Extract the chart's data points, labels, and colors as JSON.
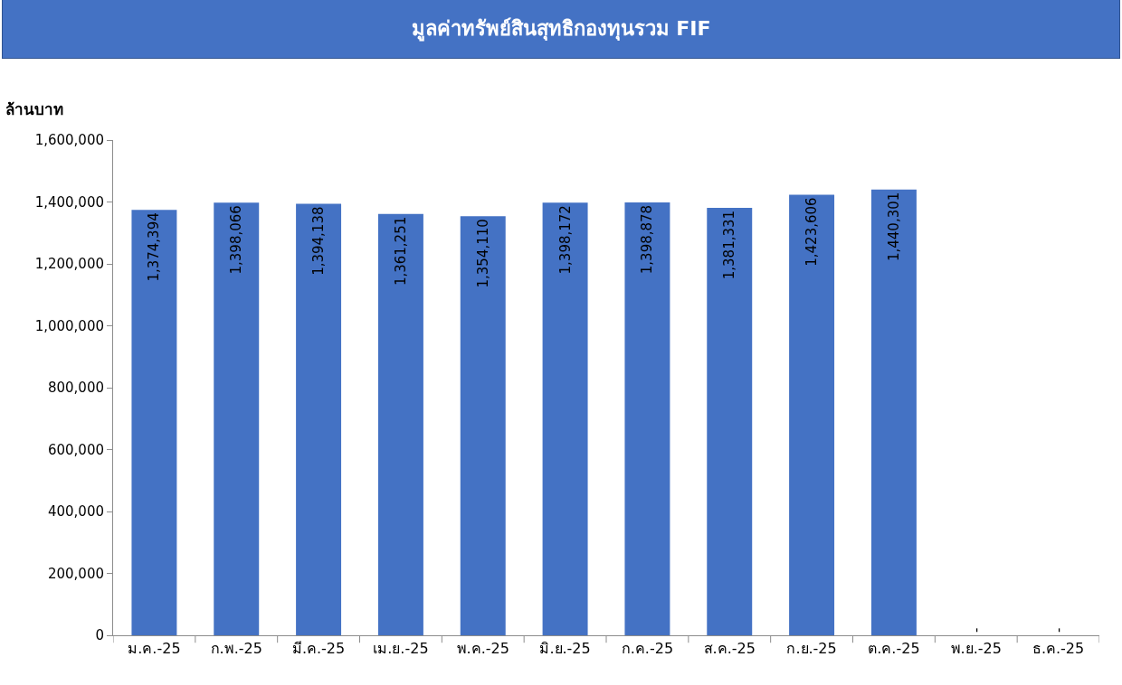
{
  "chart_data": {
    "type": "bar",
    "title": "มูลค่าทรัพย์สินสุทธิกองทุนรวม FIF",
    "ylabel": "ล้านบาท",
    "categories": [
      "ม.ค.-25",
      "ก.พ.-25",
      "มี.ค.-25",
      "เม.ย.-25",
      "พ.ค.-25",
      "มิ.ย.-25",
      "ก.ค.-25",
      "ส.ค.-25",
      "ก.ย.-25",
      "ต.ค.-25",
      "พ.ย.-25",
      "ธ.ค.-25"
    ],
    "values": [
      1374394,
      1398066,
      1394138,
      1361251,
      1354110,
      1398172,
      1398878,
      1381331,
      1423606,
      1440301,
      0,
      0
    ],
    "value_labels": [
      "1,374,394",
      "1,398,066",
      "1,394,138",
      "1,361,251",
      "1,354,110",
      "1,398,172",
      "1,398,878",
      "1,381,331",
      "1,423,606",
      "1,440,301",
      "-",
      "-"
    ],
    "color": "#4472c4",
    "ylim": [
      0,
      1600000
    ],
    "yticks": [
      {
        "value": 0,
        "label": "0"
      },
      {
        "value": 200000,
        "label": "200,000"
      },
      {
        "value": 400000,
        "label": "400,000"
      },
      {
        "value": 600000,
        "label": "600,000"
      },
      {
        "value": 800000,
        "label": "800,000"
      },
      {
        "value": 1000000,
        "label": "1,000,000"
      },
      {
        "value": 1200000,
        "label": "1,200,000"
      },
      {
        "value": 1400000,
        "label": "1,400,000"
      },
      {
        "value": 1600000,
        "label": "1,600,000"
      }
    ],
    "grid": false,
    "legend": false
  }
}
